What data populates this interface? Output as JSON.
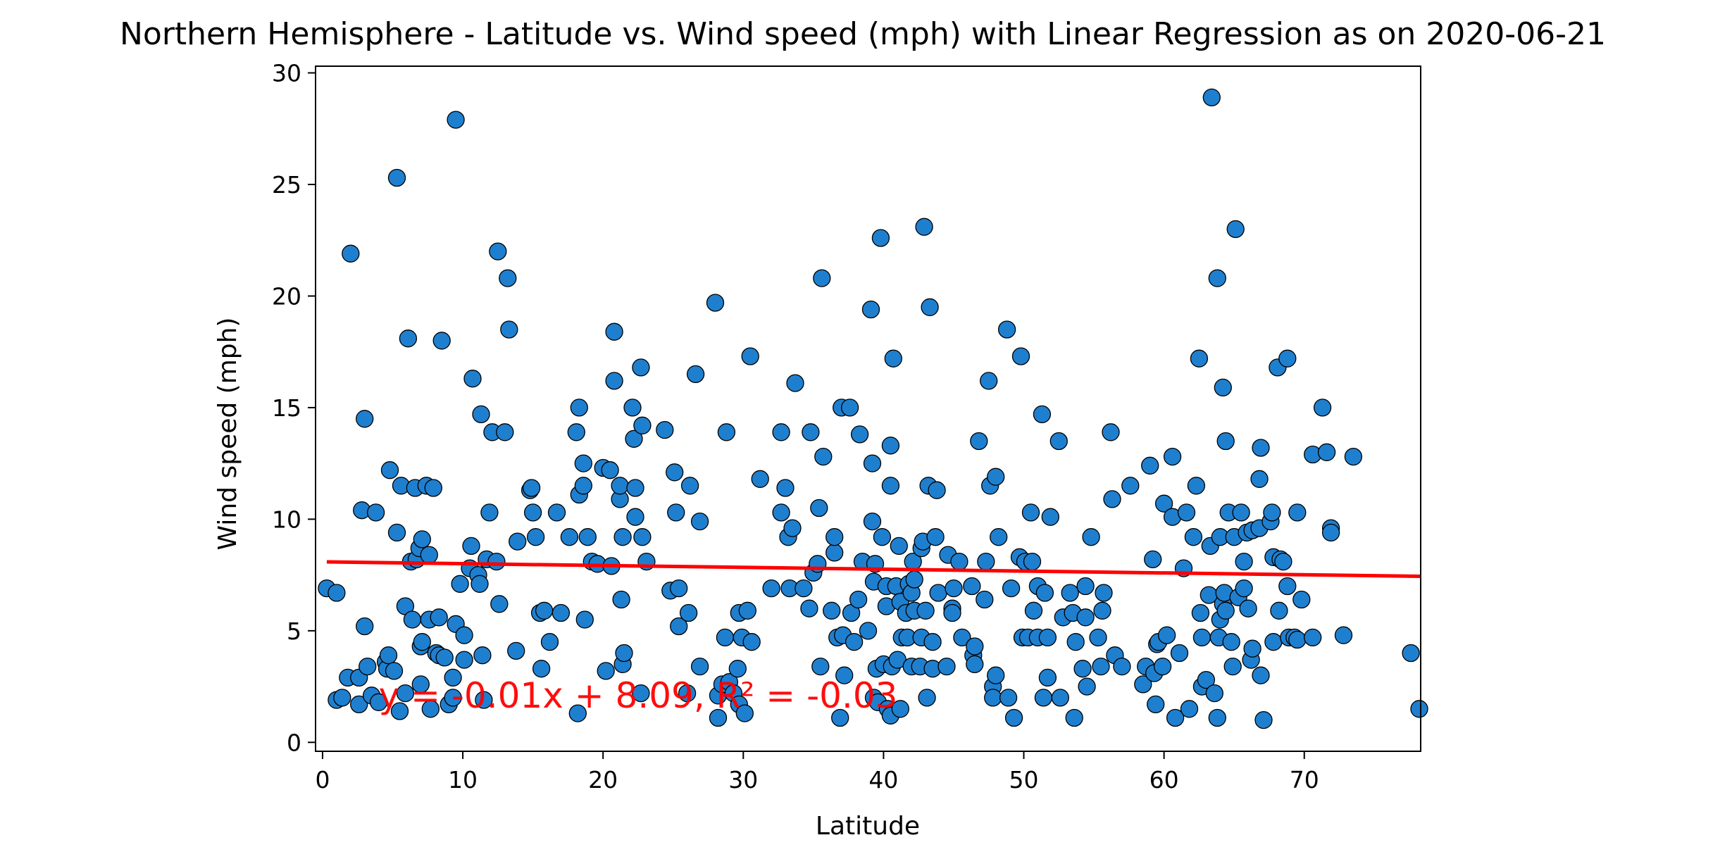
{
  "chart_data": {
    "type": "scatter",
    "title": "Northern Hemisphere - Latitude vs. Wind speed (mph) with Linear Regression as on 2020-06-21",
    "xlabel": "Latitude",
    "ylabel": "Wind speed (mph)",
    "xlim": [
      -0.5,
      78.3
    ],
    "ylim": [
      -0.4,
      30.3
    ],
    "xticks": [
      0,
      10,
      20,
      30,
      40,
      50,
      60,
      70
    ],
    "yticks": [
      0,
      5,
      10,
      15,
      20,
      25,
      30
    ],
    "grid": false,
    "legend": "none",
    "marker_color": "#1f7fcf",
    "marker_edge_color": "#000000",
    "line_color": "#ff0000",
    "annotation": {
      "text": "y = -0.01x + 8.09, R² = -0.03",
      "x": 4,
      "y": 2.0
    },
    "regression": {
      "slope": -0.0083,
      "intercept": 8.09,
      "x_range": [
        0.3,
        78.3
      ]
    },
    "points": [
      [
        0.3,
        6.9
      ],
      [
        1.0,
        6.7
      ],
      [
        1.0,
        1.9
      ],
      [
        1.4,
        2.0
      ],
      [
        1.8,
        2.9
      ],
      [
        2.0,
        21.9
      ],
      [
        2.6,
        1.7
      ],
      [
        2.6,
        2.9
      ],
      [
        2.8,
        10.4
      ],
      [
        3.0,
        14.5
      ],
      [
        3.0,
        5.2
      ],
      [
        3.2,
        3.4
      ],
      [
        3.5,
        2.1
      ],
      [
        3.8,
        10.3
      ],
      [
        4.0,
        1.8
      ],
      [
        4.5,
        3.6
      ],
      [
        4.6,
        3.3
      ],
      [
        4.7,
        3.9
      ],
      [
        4.8,
        12.2
      ],
      [
        5.1,
        3.2
      ],
      [
        5.3,
        9.4
      ],
      [
        5.3,
        25.3
      ],
      [
        5.5,
        1.4
      ],
      [
        5.6,
        11.5
      ],
      [
        5.9,
        6.1
      ],
      [
        5.9,
        2.2
      ],
      [
        6.1,
        18.1
      ],
      [
        6.3,
        8.1
      ],
      [
        6.4,
        5.5
      ],
      [
        6.6,
        11.4
      ],
      [
        6.7,
        8.2
      ],
      [
        6.9,
        8.7
      ],
      [
        7.0,
        4.3
      ],
      [
        7.0,
        2.6
      ],
      [
        7.1,
        9.1
      ],
      [
        7.1,
        4.5
      ],
      [
        7.4,
        11.5
      ],
      [
        7.6,
        8.4
      ],
      [
        7.6,
        5.5
      ],
      [
        7.7,
        1.5
      ],
      [
        7.9,
        11.4
      ],
      [
        8.1,
        4.0
      ],
      [
        8.3,
        5.6
      ],
      [
        8.3,
        3.9
      ],
      [
        8.5,
        18.0
      ],
      [
        8.7,
        3.8
      ],
      [
        9.0,
        1.7
      ],
      [
        9.3,
        2.0
      ],
      [
        9.3,
        2.9
      ],
      [
        9.5,
        27.9
      ],
      [
        9.5,
        5.3
      ],
      [
        9.8,
        7.1
      ],
      [
        10.1,
        3.7
      ],
      [
        10.1,
        4.8
      ],
      [
        10.5,
        7.8
      ],
      [
        10.6,
        8.8
      ],
      [
        10.7,
        16.3
      ],
      [
        11.1,
        7.5
      ],
      [
        11.2,
        7.1
      ],
      [
        11.3,
        14.7
      ],
      [
        11.4,
        3.9
      ],
      [
        11.5,
        1.9
      ],
      [
        11.7,
        8.2
      ],
      [
        11.9,
        10.3
      ],
      [
        12.1,
        13.9
      ],
      [
        12.4,
        8.1
      ],
      [
        12.5,
        22.0
      ],
      [
        12.6,
        6.2
      ],
      [
        13.0,
        13.9
      ],
      [
        13.2,
        20.8
      ],
      [
        13.3,
        18.5
      ],
      [
        13.8,
        4.1
      ],
      [
        13.9,
        9.0
      ],
      [
        14.8,
        11.3
      ],
      [
        14.9,
        11.4
      ],
      [
        15.0,
        10.3
      ],
      [
        15.2,
        9.2
      ],
      [
        15.5,
        5.8
      ],
      [
        15.6,
        3.3
      ],
      [
        15.8,
        5.9
      ],
      [
        16.2,
        4.5
      ],
      [
        16.7,
        10.3
      ],
      [
        17.0,
        5.8
      ],
      [
        17.6,
        9.2
      ],
      [
        18.1,
        13.9
      ],
      [
        18.2,
        1.3
      ],
      [
        18.3,
        15.0
      ],
      [
        18.3,
        11.1
      ],
      [
        18.6,
        11.5
      ],
      [
        18.6,
        12.5
      ],
      [
        18.7,
        5.5
      ],
      [
        18.9,
        9.2
      ],
      [
        19.2,
        8.1
      ],
      [
        19.6,
        8.0
      ],
      [
        20.0,
        12.3
      ],
      [
        20.2,
        3.2
      ],
      [
        20.5,
        12.2
      ],
      [
        20.6,
        7.9
      ],
      [
        20.8,
        18.4
      ],
      [
        20.8,
        16.2
      ],
      [
        21.2,
        10.9
      ],
      [
        21.2,
        11.5
      ],
      [
        21.3,
        6.4
      ],
      [
        21.4,
        9.2
      ],
      [
        21.4,
        3.5
      ],
      [
        21.5,
        4.0
      ],
      [
        22.1,
        15.0
      ],
      [
        22.2,
        13.6
      ],
      [
        22.3,
        10.1
      ],
      [
        22.3,
        11.4
      ],
      [
        22.7,
        16.8
      ],
      [
        22.7,
        2.2
      ],
      [
        22.8,
        14.2
      ],
      [
        22.8,
        9.2
      ],
      [
        23.1,
        8.1
      ],
      [
        24.4,
        14.0
      ],
      [
        24.8,
        6.8
      ],
      [
        25.1,
        12.1
      ],
      [
        25.2,
        10.3
      ],
      [
        25.4,
        5.2
      ],
      [
        25.4,
        6.9
      ],
      [
        26.0,
        2.2
      ],
      [
        26.1,
        5.8
      ],
      [
        26.2,
        11.5
      ],
      [
        26.6,
        16.5
      ],
      [
        26.9,
        3.4
      ],
      [
        26.9,
        9.9
      ],
      [
        28.0,
        19.7
      ],
      [
        28.2,
        1.1
      ],
      [
        28.2,
        2.1
      ],
      [
        28.5,
        2.6
      ],
      [
        28.7,
        4.7
      ],
      [
        28.8,
        13.9
      ],
      [
        29.0,
        2.7
      ],
      [
        29.3,
        2.2
      ],
      [
        29.6,
        3.3
      ],
      [
        29.7,
        5.8
      ],
      [
        29.7,
        1.7
      ],
      [
        29.9,
        4.7
      ],
      [
        30.1,
        1.3
      ],
      [
        30.3,
        5.9
      ],
      [
        30.5,
        17.3
      ],
      [
        30.6,
        4.5
      ],
      [
        31.2,
        11.8
      ],
      [
        32.0,
        6.9
      ],
      [
        32.7,
        13.9
      ],
      [
        32.7,
        10.3
      ],
      [
        33.0,
        11.4
      ],
      [
        33.2,
        9.2
      ],
      [
        33.3,
        6.9
      ],
      [
        33.5,
        9.6
      ],
      [
        33.7,
        16.1
      ],
      [
        34.3,
        6.9
      ],
      [
        34.7,
        6.0
      ],
      [
        34.8,
        13.9
      ],
      [
        35.0,
        7.6
      ],
      [
        35.3,
        8.0
      ],
      [
        35.4,
        10.5
      ],
      [
        35.5,
        3.4
      ],
      [
        35.6,
        20.8
      ],
      [
        35.7,
        12.8
      ],
      [
        36.3,
        5.9
      ],
      [
        36.5,
        8.5
      ],
      [
        36.5,
        9.2
      ],
      [
        36.7,
        4.7
      ],
      [
        36.9,
        1.1
      ],
      [
        37.0,
        15.0
      ],
      [
        37.1,
        4.8
      ],
      [
        37.2,
        3.0
      ],
      [
        37.6,
        15.0
      ],
      [
        37.7,
        5.8
      ],
      [
        37.9,
        4.5
      ],
      [
        38.2,
        6.4
      ],
      [
        38.3,
        13.8
      ],
      [
        38.5,
        8.1
      ],
      [
        38.9,
        5.0
      ],
      [
        39.1,
        19.4
      ],
      [
        39.2,
        12.5
      ],
      [
        39.2,
        9.9
      ],
      [
        39.3,
        7.2
      ],
      [
        39.3,
        2.0
      ],
      [
        39.4,
        8.0
      ],
      [
        39.5,
        3.3
      ],
      [
        39.6,
        1.8
      ],
      [
        39.8,
        22.6
      ],
      [
        39.9,
        9.2
      ],
      [
        40.0,
        3.5
      ],
      [
        40.2,
        7.0
      ],
      [
        40.2,
        6.1
      ],
      [
        40.3,
        1.5
      ],
      [
        40.5,
        13.3
      ],
      [
        40.5,
        11.5
      ],
      [
        40.5,
        1.2
      ],
      [
        40.6,
        3.4
      ],
      [
        40.7,
        17.2
      ],
      [
        40.9,
        7.0
      ],
      [
        41.0,
        3.7
      ],
      [
        41.1,
        8.8
      ],
      [
        41.2,
        1.5
      ],
      [
        41.2,
        6.3
      ],
      [
        41.3,
        4.7
      ],
      [
        41.6,
        5.8
      ],
      [
        41.7,
        4.7
      ],
      [
        41.8,
        7.1
      ],
      [
        42.0,
        6.7
      ],
      [
        42.0,
        3.4
      ],
      [
        42.1,
        8.1
      ],
      [
        42.2,
        7.3
      ],
      [
        42.2,
        5.9
      ],
      [
        42.6,
        3.4
      ],
      [
        42.7,
        4.7
      ],
      [
        42.7,
        8.7
      ],
      [
        42.8,
        9.0
      ],
      [
        42.9,
        23.1
      ],
      [
        43.0,
        5.9
      ],
      [
        43.1,
        2.0
      ],
      [
        43.2,
        11.5
      ],
      [
        43.3,
        19.5
      ],
      [
        43.5,
        3.3
      ],
      [
        43.5,
        4.5
      ],
      [
        43.7,
        9.2
      ],
      [
        43.8,
        11.3
      ],
      [
        43.9,
        6.7
      ],
      [
        44.5,
        3.4
      ],
      [
        44.6,
        8.4
      ],
      [
        44.9,
        6.0
      ],
      [
        44.9,
        5.8
      ],
      [
        45.0,
        6.9
      ],
      [
        45.4,
        8.1
      ],
      [
        45.6,
        4.7
      ],
      [
        46.3,
        7.0
      ],
      [
        46.4,
        3.9
      ],
      [
        46.5,
        4.3
      ],
      [
        46.5,
        3.5
      ],
      [
        46.8,
        13.5
      ],
      [
        47.2,
        6.4
      ],
      [
        47.3,
        8.1
      ],
      [
        47.5,
        16.2
      ],
      [
        47.6,
        11.5
      ],
      [
        47.8,
        2.5
      ],
      [
        47.8,
        2.0
      ],
      [
        48.0,
        11.9
      ],
      [
        48.0,
        3.0
      ],
      [
        48.2,
        9.2
      ],
      [
        48.8,
        18.5
      ],
      [
        48.9,
        2.0
      ],
      [
        49.1,
        6.9
      ],
      [
        49.3,
        1.1
      ],
      [
        49.7,
        8.3
      ],
      [
        49.8,
        17.3
      ],
      [
        49.9,
        4.7
      ],
      [
        50.1,
        8.1
      ],
      [
        50.3,
        4.7
      ],
      [
        50.5,
        10.3
      ],
      [
        50.6,
        8.1
      ],
      [
        50.7,
        5.9
      ],
      [
        51.0,
        4.7
      ],
      [
        51.0,
        7.0
      ],
      [
        51.3,
        14.7
      ],
      [
        51.4,
        2.0
      ],
      [
        51.5,
        6.7
      ],
      [
        51.7,
        4.7
      ],
      [
        51.7,
        2.9
      ],
      [
        51.9,
        10.1
      ],
      [
        52.5,
        13.5
      ],
      [
        52.6,
        2.0
      ],
      [
        52.8,
        5.6
      ],
      [
        53.3,
        6.7
      ],
      [
        53.5,
        5.8
      ],
      [
        53.6,
        1.1
      ],
      [
        53.7,
        4.5
      ],
      [
        54.2,
        3.3
      ],
      [
        54.4,
        5.6
      ],
      [
        54.4,
        7.0
      ],
      [
        54.5,
        2.5
      ],
      [
        54.8,
        9.2
      ],
      [
        55.3,
        4.7
      ],
      [
        55.5,
        3.4
      ],
      [
        55.6,
        5.9
      ],
      [
        55.7,
        6.7
      ],
      [
        56.2,
        13.9
      ],
      [
        56.3,
        10.9
      ],
      [
        56.5,
        3.9
      ],
      [
        57.0,
        3.4
      ],
      [
        57.6,
        11.5
      ],
      [
        58.5,
        2.6
      ],
      [
        58.7,
        3.4
      ],
      [
        59.0,
        12.4
      ],
      [
        59.2,
        8.2
      ],
      [
        59.3,
        3.1
      ],
      [
        59.4,
        1.7
      ],
      [
        59.5,
        4.4
      ],
      [
        59.6,
        4.5
      ],
      [
        59.9,
        3.4
      ],
      [
        60.0,
        10.7
      ],
      [
        60.2,
        4.8
      ],
      [
        60.6,
        12.8
      ],
      [
        60.6,
        10.1
      ],
      [
        60.8,
        1.1
      ],
      [
        61.1,
        4.0
      ],
      [
        61.4,
        7.8
      ],
      [
        61.6,
        10.3
      ],
      [
        61.8,
        1.5
      ],
      [
        62.1,
        9.2
      ],
      [
        62.3,
        11.5
      ],
      [
        62.5,
        17.2
      ],
      [
        62.6,
        5.8
      ],
      [
        62.7,
        4.7
      ],
      [
        62.7,
        2.5
      ],
      [
        63.0,
        2.8
      ],
      [
        63.2,
        6.6
      ],
      [
        63.3,
        8.8
      ],
      [
        63.4,
        28.9
      ],
      [
        63.6,
        2.2
      ],
      [
        63.8,
        20.8
      ],
      [
        63.8,
        1.1
      ],
      [
        63.9,
        4.7
      ],
      [
        64.0,
        9.2
      ],
      [
        64.0,
        5.5
      ],
      [
        64.2,
        15.9
      ],
      [
        64.2,
        6.2
      ],
      [
        64.3,
        6.7
      ],
      [
        64.4,
        13.5
      ],
      [
        64.4,
        5.9
      ],
      [
        64.6,
        10.3
      ],
      [
        64.8,
        4.5
      ],
      [
        64.9,
        3.4
      ],
      [
        65.0,
        9.2
      ],
      [
        65.1,
        23.0
      ],
      [
        65.3,
        6.5
      ],
      [
        65.5,
        10.3
      ],
      [
        65.7,
        8.1
      ],
      [
        65.7,
        6.9
      ],
      [
        65.9,
        9.4
      ],
      [
        66.0,
        6.0
      ],
      [
        66.2,
        3.7
      ],
      [
        66.3,
        9.5
      ],
      [
        66.3,
        4.2
      ],
      [
        66.8,
        11.8
      ],
      [
        66.8,
        9.6
      ],
      [
        66.9,
        13.2
      ],
      [
        66.9,
        3.0
      ],
      [
        67.1,
        1.0
      ],
      [
        67.6,
        9.9
      ],
      [
        67.7,
        10.3
      ],
      [
        67.8,
        4.5
      ],
      [
        67.8,
        8.3
      ],
      [
        68.1,
        16.8
      ],
      [
        68.2,
        5.9
      ],
      [
        68.3,
        8.2
      ],
      [
        68.5,
        8.1
      ],
      [
        68.8,
        17.2
      ],
      [
        68.8,
        7.0
      ],
      [
        68.9,
        4.7
      ],
      [
        69.3,
        4.7
      ],
      [
        69.5,
        4.6
      ],
      [
        69.5,
        10.3
      ],
      [
        69.8,
        6.4
      ],
      [
        70.6,
        12.9
      ],
      [
        70.6,
        4.7
      ],
      [
        71.3,
        15.0
      ],
      [
        71.6,
        13.0
      ],
      [
        71.9,
        9.6
      ],
      [
        71.9,
        9.4
      ],
      [
        72.8,
        4.8
      ],
      [
        73.5,
        12.8
      ],
      [
        77.6,
        4.0
      ],
      [
        78.2,
        1.5
      ]
    ]
  }
}
